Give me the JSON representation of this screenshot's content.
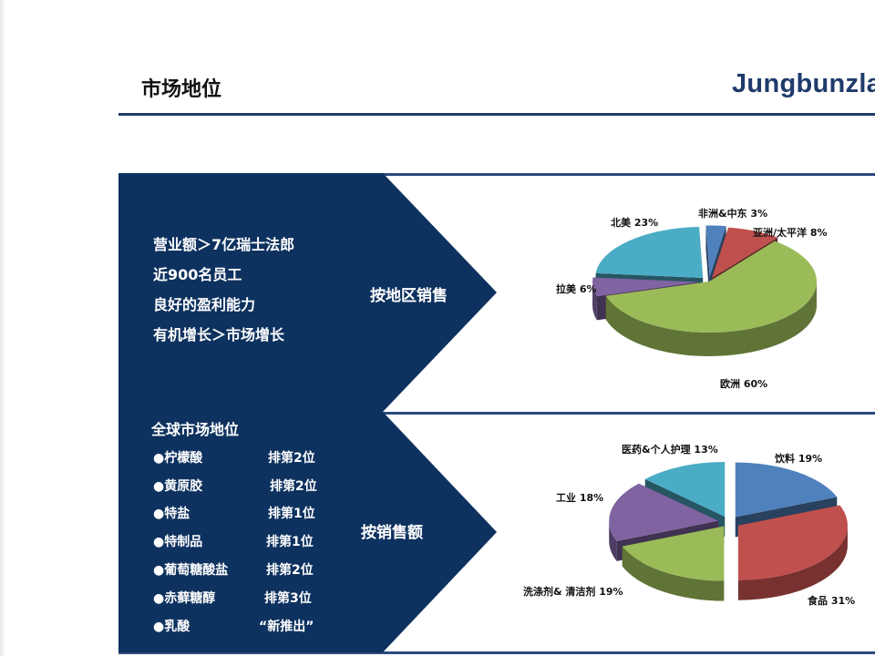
{
  "header": {
    "title": "市场地位",
    "logo_text": "Jungbunzlau"
  },
  "top_section": {
    "bullets": [
      "营业额＞7亿瑞士法郎",
      "近900名员工",
      "良好的盈利能力",
      "有机增长＞市场增长"
    ],
    "arrow_label": "按地区销售"
  },
  "bottom_section": {
    "heading": "全球市场地位",
    "rankings": [
      {
        "product": "●柠檬酸",
        "rank": "排第2位"
      },
      {
        "product": "●黄原胶",
        "rank": "排第2位"
      },
      {
        "product": "●特盐",
        "rank": "排第1位"
      },
      {
        "product": "●特制品",
        "rank": "排第1位"
      },
      {
        "product": "●葡萄糖酸盐",
        "rank": "排第2位"
      },
      {
        "product": "●赤藓糖醇",
        "rank": "排第3位"
      },
      {
        "product": "●乳酸",
        "rank": "“新推出”"
      }
    ],
    "arrow_label": "按销售额"
  },
  "colors": {
    "navy": "#0e325f",
    "rule": "#1f3b6b",
    "blue": "#4f81bd",
    "red": "#c0504d",
    "green": "#9bbb59",
    "purple": "#8064a2",
    "teal": "#4bacc6"
  },
  "chart_data": [
    {
      "type": "pie",
      "slices": [
        {
          "label": "非洲&中东",
          "value_text": "3%",
          "value": 3,
          "color": "#4f81bd"
        },
        {
          "label": "亚洲/太平洋",
          "value_text": "8%",
          "value": 8,
          "color": "#c0504d"
        },
        {
          "label": "欧洲",
          "value_text": "60%",
          "value": 60,
          "color": "#9bbb59"
        },
        {
          "label": "拉美",
          "value_text": "6%",
          "value": 6,
          "color": "#8064a2"
        },
        {
          "label": "北美",
          "value_text": "23%",
          "value": 23,
          "color": "#4bacc6"
        }
      ]
    },
    {
      "type": "pie",
      "slices": [
        {
          "label": "饮料",
          "value_text": "19%",
          "value": 19,
          "color": "#4f81bd"
        },
        {
          "label": "食品",
          "value_text": "31%",
          "value": 31,
          "color": "#c0504d"
        },
        {
          "label": "洗涤剂& 清洁剂",
          "value_text": "19%",
          "value": 19,
          "color": "#9bbb59"
        },
        {
          "label": "工业",
          "value_text": "18%",
          "value": 18,
          "color": "#8064a2"
        },
        {
          "label": "医药&个人护理",
          "value_text": "13%",
          "value": 13,
          "color": "#4bacc6"
        }
      ]
    }
  ]
}
